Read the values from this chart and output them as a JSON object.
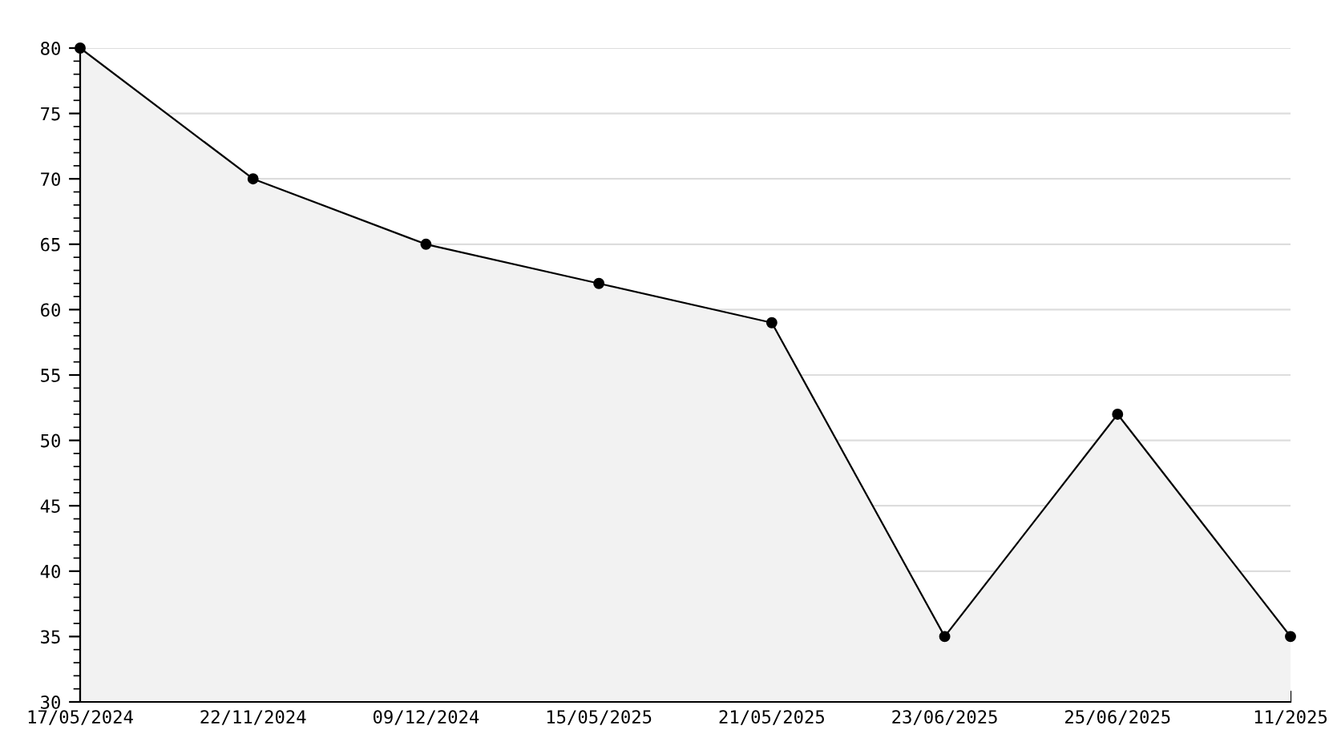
{
  "chart_data": {
    "type": "area",
    "categories": [
      "17/05/2024",
      "22/11/2024",
      "09/12/2024",
      "15/05/2025",
      "21/05/2025",
      "23/06/2025",
      "25/06/2025",
      "11/2025"
    ],
    "series": [
      {
        "color": "#000000",
        "values": [
          80,
          70,
          65,
          62,
          59,
          35,
          52,
          35
        ]
      }
    ],
    "ylim": [
      30,
      80
    ],
    "yticks": [
      30,
      35,
      40,
      45,
      50,
      55,
      60,
      65,
      70,
      75,
      80
    ],
    "grid": "y",
    "marker": "circle",
    "line_style": "solid"
  }
}
